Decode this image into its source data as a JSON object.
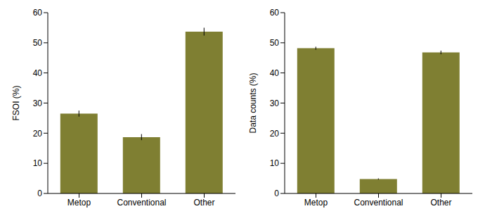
{
  "chart_data": [
    {
      "type": "bar",
      "y_label": "FSOI (%)",
      "categories": [
        "Metop",
        "Conventional",
        "Other"
      ],
      "values": [
        26.5,
        18.7,
        53.7
      ],
      "errors": [
        1.0,
        1.0,
        1.3
      ],
      "color": "#7f7f32",
      "ylim": [
        0,
        60
      ],
      "yticks": [
        0,
        10,
        20,
        30,
        40,
        50,
        60
      ]
    },
    {
      "type": "bar",
      "y_label": "Data counts (%)",
      "categories": [
        "Metop",
        "Conventional",
        "Other"
      ],
      "values": [
        48.2,
        4.8,
        46.8
      ],
      "errors": [
        0.5,
        0.2,
        0.6
      ],
      "color": "#7f7f32",
      "ylim": [
        0,
        60
      ],
      "yticks": [
        0,
        10,
        20,
        30,
        40,
        50,
        60
      ]
    }
  ]
}
